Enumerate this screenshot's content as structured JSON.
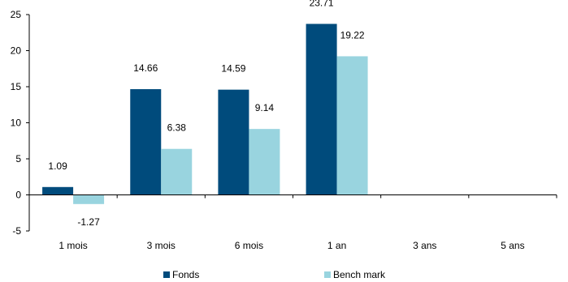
{
  "chart_data": {
    "type": "bar",
    "categories": [
      "1 mois",
      "3 mois",
      "6 mois",
      "1 an",
      "3 ans",
      "5 ans"
    ],
    "series": [
      {
        "name": "Fonds",
        "values": [
          1.09,
          14.66,
          14.59,
          23.71,
          null,
          null
        ],
        "labels": [
          "1.09",
          "14.66",
          "14.59",
          "23.71",
          null,
          null
        ],
        "color": "#004b7c"
      },
      {
        "name": "Bench mark",
        "values": [
          -1.27,
          6.38,
          9.14,
          19.22,
          null,
          null
        ],
        "labels": [
          "-1.27",
          "6.38",
          "9.14",
          "19.22",
          null,
          null
        ],
        "color": "#99d4df"
      }
    ],
    "ylim": [
      -5,
      25
    ],
    "yticks": [
      -5,
      0,
      5,
      10,
      15,
      20,
      25
    ],
    "title": "",
    "xlabel": "",
    "ylabel": "",
    "grid": false,
    "legend_position": "bottom-center"
  }
}
